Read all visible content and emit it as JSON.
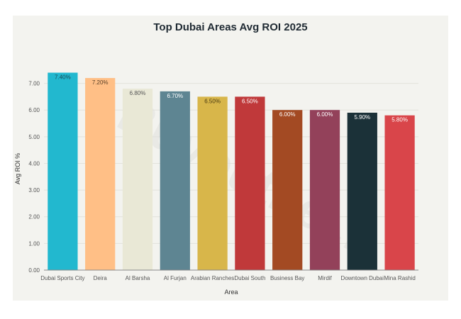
{
  "chart_data": {
    "type": "bar",
    "title": "Top Dubai Areas Avg ROI 2025",
    "xlabel": "Area",
    "ylabel": "Avg ROI %",
    "ylim": [
      0,
      7.6
    ],
    "yticks": [
      "0.00",
      "1.00",
      "2.00",
      "3.00",
      "4.00",
      "5.00",
      "6.00",
      "7.00"
    ],
    "grid": true,
    "categories": [
      "Dubai Sports City",
      "Deira",
      "Al Barsha",
      "Al Furjan",
      "Arabian Ranches",
      "Dubai South",
      "Business Bay",
      "Mirdif",
      "Downtown Dubai",
      "Mina Rashid"
    ],
    "values": [
      7.4,
      7.2,
      6.8,
      6.7,
      6.5,
      6.5,
      6.0,
      6.0,
      5.9,
      5.8
    ],
    "data_labels": [
      "7.40%",
      "7.20%",
      "6.80%",
      "6.70%",
      "6.50%",
      "6.50%",
      "6.00%",
      "6.00%",
      "5.90%",
      "5.80%"
    ],
    "colors": [
      "#22b8cf",
      "#ffbf86",
      "#e9e8d6",
      "#5e8592",
      "#d8b64a",
      "#c0393a",
      "#a34a23",
      "#93415a",
      "#1b3138",
      "#d9454a"
    ],
    "label_colors": [
      "#1b4b57",
      "#5a4026",
      "#555555",
      "#ffffff",
      "#4a3b12",
      "#ffffff",
      "#ffffff",
      "#ffffff",
      "#ffffff",
      "#ffffff"
    ]
  },
  "watermark": "Buyouthe..."
}
